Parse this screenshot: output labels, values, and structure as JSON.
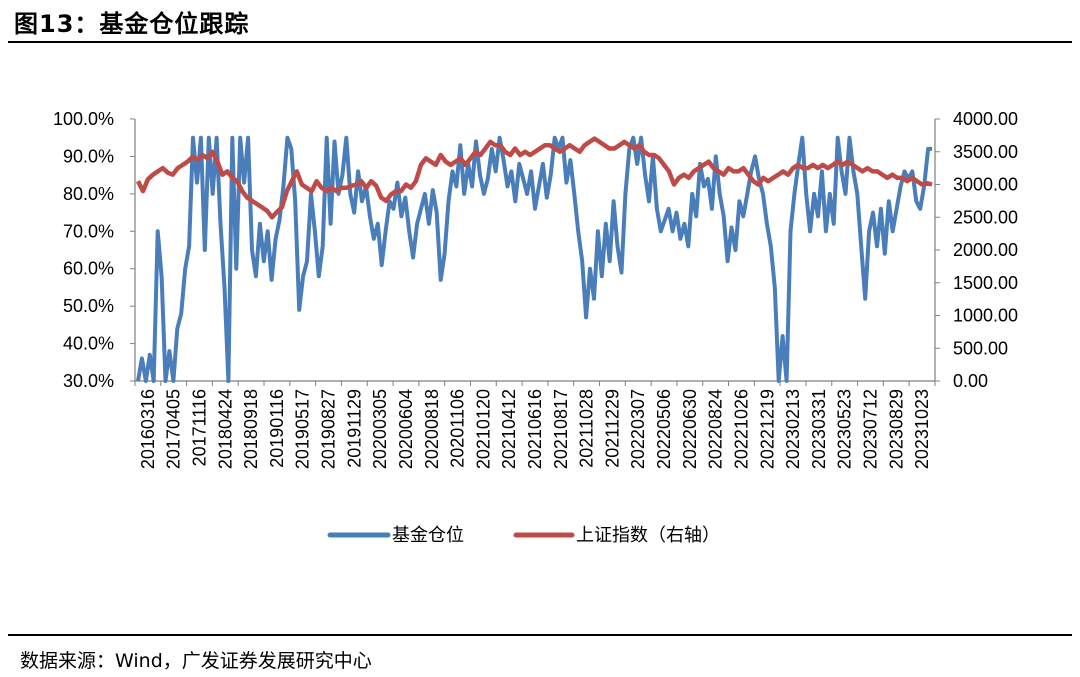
{
  "header": {
    "title": "图13：基金仓位跟踪"
  },
  "footer": {
    "source": "数据来源：Wind，广发证券发展研究中心"
  },
  "chart_data": {
    "type": "line",
    "title": "基金仓位跟踪",
    "y_left": {
      "min": 0.3,
      "max": 1.0,
      "ticks": [
        0.3,
        0.4,
        0.5,
        0.6,
        0.7,
        0.8,
        0.9,
        1.0
      ],
      "tick_labels": [
        "30.0%",
        "40.0%",
        "50.0%",
        "60.0%",
        "70.0%",
        "80.0%",
        "90.0%",
        "100.0%"
      ]
    },
    "y_right": {
      "min": 0,
      "max": 4000,
      "ticks": [
        0,
        500,
        1000,
        1500,
        2000,
        2500,
        3000,
        3500,
        4000
      ],
      "tick_labels": [
        "0.00",
        "500.00",
        "1000.00",
        "1500.00",
        "2000.00",
        "2500.00",
        "3000.00",
        "3500.00",
        "4000.00"
      ]
    },
    "x_labels": [
      "20160316",
      "20170405",
      "20171116",
      "20180424",
      "20180918",
      "20190116",
      "20190517",
      "20190827",
      "20191129",
      "20200305",
      "20200604",
      "20200818",
      "20201106",
      "20210120",
      "20210412",
      "20210616",
      "20210817",
      "20211028",
      "20211229",
      "20220307",
      "20220506",
      "20220630",
      "20220824",
      "20221026",
      "20221219",
      "20230213",
      "20230331",
      "20230523",
      "20230712",
      "20230829",
      "20231023"
    ],
    "legend": [
      "基金仓位",
      "上证指数（右轴）"
    ],
    "legend_position": "bottom",
    "colors": {
      "position": "#4a7ebb",
      "index": "#be4b48"
    },
    "series": [
      {
        "name": "基金仓位",
        "axis": "left",
        "values": [
          0.3,
          0.36,
          0.3,
          0.37,
          0.3,
          0.7,
          0.58,
          0.3,
          0.38,
          0.3,
          0.44,
          0.48,
          0.6,
          0.66,
          0.95,
          0.83,
          0.95,
          0.65,
          0.95,
          0.8,
          0.95,
          0.72,
          0.55,
          0.3,
          0.95,
          0.6,
          0.95,
          0.83,
          0.95,
          0.65,
          0.58,
          0.72,
          0.62,
          0.7,
          0.57,
          0.68,
          0.73,
          0.82,
          0.95,
          0.92,
          0.78,
          0.49,
          0.58,
          0.62,
          0.8,
          0.7,
          0.58,
          0.66,
          0.95,
          0.72,
          0.94,
          0.8,
          0.85,
          0.95,
          0.8,
          0.75,
          0.86,
          0.78,
          0.82,
          0.74,
          0.68,
          0.72,
          0.61,
          0.7,
          0.78,
          0.76,
          0.83,
          0.74,
          0.79,
          0.7,
          0.63,
          0.72,
          0.76,
          0.8,
          0.72,
          0.81,
          0.75,
          0.57,
          0.64,
          0.78,
          0.86,
          0.82,
          0.93,
          0.8,
          0.88,
          0.82,
          0.94,
          0.85,
          0.8,
          0.84,
          0.92,
          0.86,
          0.95,
          0.89,
          0.82,
          0.86,
          0.78,
          0.88,
          0.84,
          0.8,
          0.86,
          0.76,
          0.82,
          0.88,
          0.79,
          0.85,
          0.95,
          0.92,
          0.95,
          0.83,
          0.89,
          0.8,
          0.7,
          0.62,
          0.47,
          0.6,
          0.52,
          0.7,
          0.58,
          0.72,
          0.62,
          0.78,
          0.66,
          0.59,
          0.8,
          0.92,
          0.95,
          0.88,
          0.95,
          0.85,
          0.78,
          0.9,
          0.76,
          0.7,
          0.73,
          0.76,
          0.7,
          0.75,
          0.68,
          0.72,
          0.66,
          0.8,
          0.74,
          0.88,
          0.82,
          0.84,
          0.76,
          0.9,
          0.8,
          0.74,
          0.62,
          0.71,
          0.65,
          0.78,
          0.74,
          0.8,
          0.86,
          0.9,
          0.84,
          0.8,
          0.72,
          0.66,
          0.55,
          0.3,
          0.42,
          0.3,
          0.7,
          0.8,
          0.88,
          0.95,
          0.8,
          0.7,
          0.8,
          0.74,
          0.86,
          0.7,
          0.8,
          0.72,
          0.95,
          0.86,
          0.8,
          0.95,
          0.86,
          0.8,
          0.66,
          0.52,
          0.7,
          0.75,
          0.66,
          0.76,
          0.64,
          0.78,
          0.7,
          0.76,
          0.82,
          0.86,
          0.84,
          0.86,
          0.78,
          0.76,
          0.82,
          0.92,
          0.92
        ]
      },
      {
        "name": "上证指数（右轴）",
        "axis": "right",
        "values": [
          3050,
          2900,
          3080,
          3150,
          3200,
          3250,
          3180,
          3150,
          3250,
          3300,
          3350,
          3420,
          3380,
          3450,
          3400,
          3500,
          3350,
          3150,
          3200,
          3100,
          3050,
          2900,
          2800,
          2750,
          2700,
          2650,
          2600,
          2500,
          2580,
          2650,
          2900,
          3050,
          3200,
          3000,
          2950,
          2900,
          3050,
          2950,
          2900,
          2950,
          2900,
          2950,
          2950,
          2980,
          3000,
          3050,
          2950,
          3050,
          2980,
          2800,
          2750,
          2850,
          2900,
          2900,
          3000,
          2950,
          3050,
          3300,
          3400,
          3350,
          3300,
          3450,
          3350,
          3300,
          3350,
          3400,
          3300,
          3400,
          3500,
          3450,
          3550,
          3650,
          3600,
          3600,
          3500,
          3450,
          3550,
          3450,
          3500,
          3450,
          3500,
          3550,
          3600,
          3600,
          3550,
          3500,
          3550,
          3600,
          3550,
          3500,
          3600,
          3650,
          3700,
          3650,
          3600,
          3550,
          3550,
          3600,
          3650,
          3600,
          3550,
          3600,
          3500,
          3450,
          3450,
          3400,
          3300,
          3200,
          3000,
          3100,
          3150,
          3100,
          3200,
          3250,
          3300,
          3350,
          3250,
          3200,
          3150,
          3250,
          3200,
          3200,
          3250,
          3150,
          3050,
          3000,
          3100,
          3050,
          3100,
          3150,
          3200,
          3150,
          3250,
          3300,
          3250,
          3250,
          3300,
          3250,
          3300,
          3250,
          3300,
          3350,
          3300,
          3350,
          3300,
          3250,
          3200,
          3250,
          3200,
          3200,
          3150,
          3100,
          3150,
          3100,
          3100,
          3050,
          3100,
          3050,
          3000,
          3020,
          3000
        ]
      }
    ]
  }
}
